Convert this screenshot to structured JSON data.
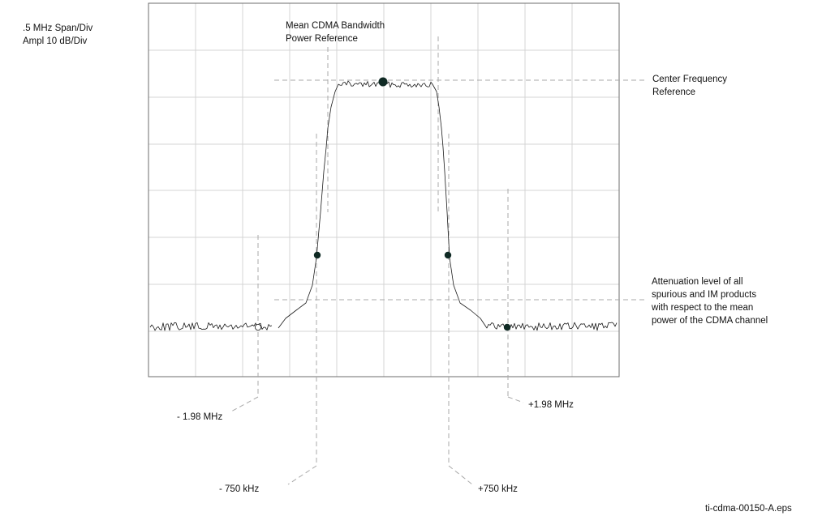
{
  "settings": {
    "span": ".5 MHz Span/Div",
    "ampl": "Ampl 10 dB/Div"
  },
  "annotations": {
    "mean_line1": "Mean CDMA Bandwidth",
    "mean_line2": "Power Reference",
    "center_line1": "Center Frequency",
    "center_line2": "Reference",
    "atten_line1": "Attenuation level of all",
    "atten_line2": "spurious and IM products",
    "atten_line3": "with respect to the mean",
    "atten_line4": "power of the CDMA channel",
    "neg_198": "- 1.98 MHz",
    "pos_198": "+1.98 MHz",
    "neg_750": "- 750 kHz",
    "pos_750": "+750  kHz"
  },
  "footer": {
    "filename": "ti-cdma-00150-A.eps"
  },
  "colors": {
    "grid": "#d4d4d4",
    "frame": "#6e6e6e",
    "trace": "#1a1a1a",
    "marker": "#0f2a24",
    "leader": "#a9a9a9"
  }
}
